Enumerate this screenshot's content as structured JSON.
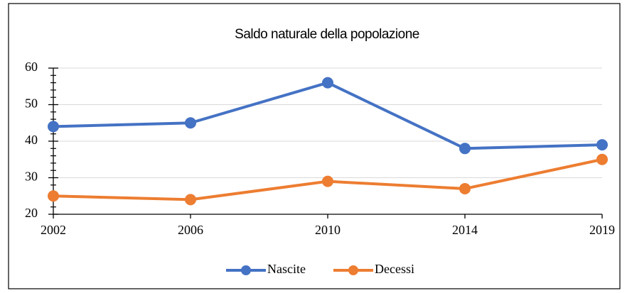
{
  "chart_data": {
    "type": "line",
    "title": "Saldo naturale della popolazione",
    "categories": [
      "2002",
      "2006",
      "2010",
      "2014",
      "2019"
    ],
    "series": [
      {
        "name": "Nascite",
        "color": "#4472c4",
        "values": [
          44,
          45,
          56,
          38,
          39
        ]
      },
      {
        "name": "Decessi",
        "color": "#ed7d31",
        "values": [
          25,
          24,
          29,
          27,
          35
        ]
      }
    ],
    "ylim": [
      20,
      60
    ],
    "yticks": [
      20,
      30,
      40,
      50,
      60
    ],
    "grid": true,
    "legend": "bottom"
  }
}
